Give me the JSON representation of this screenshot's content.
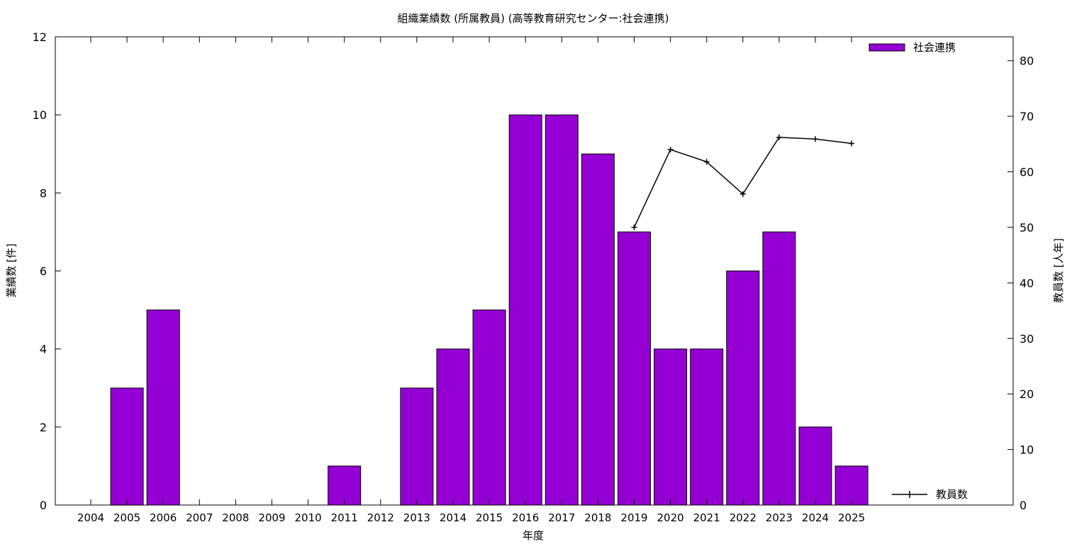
{
  "chart_data": {
    "type": "bar",
    "title": "組織業績数 (所属教員) (高等教育研究センター:社会連携)",
    "xlabel": "年度",
    "ylabel": "業績数 [件]",
    "y2label": "教員数 [人年]",
    "ylim": [
      0,
      12
    ],
    "y2lim": [
      0,
      84.3
    ],
    "yticks": [
      0,
      2,
      4,
      6,
      8,
      10,
      12
    ],
    "y2ticks": [
      0,
      10,
      20,
      30,
      40,
      50,
      60,
      70,
      80
    ],
    "grid": false,
    "legend_position": "top-right (bars), bottom-right (line)",
    "categories": [
      "2004",
      "2005",
      "2006",
      "2007",
      "2008",
      "2009",
      "2010",
      "2011",
      "2012",
      "2013",
      "2014",
      "2015",
      "2016",
      "2017",
      "2018",
      "2019",
      "2020",
      "2021",
      "2022",
      "2023",
      "2024",
      "2025"
    ],
    "series": [
      {
        "name": "社会連携",
        "type": "bar",
        "axis": "left",
        "color": "#9400d3",
        "values": [
          0,
          3,
          5,
          0,
          0,
          0,
          0,
          1,
          0,
          3,
          4,
          5,
          10,
          10,
          9,
          7,
          4,
          4,
          6,
          7,
          2,
          1
        ]
      },
      {
        "name": "教員数",
        "type": "line",
        "axis": "right",
        "color": "#000000",
        "points": [
          {
            "x": "2019",
            "y": 50.0
          },
          {
            "x": "2020",
            "y": 64.0
          },
          {
            "x": "2021",
            "y": 61.8
          },
          {
            "x": "2022",
            "y": 56.0
          },
          {
            "x": "2023",
            "y": 66.2
          },
          {
            "x": "2024",
            "y": 65.9
          },
          {
            "x": "2025",
            "y": 65.1
          }
        ]
      }
    ]
  }
}
